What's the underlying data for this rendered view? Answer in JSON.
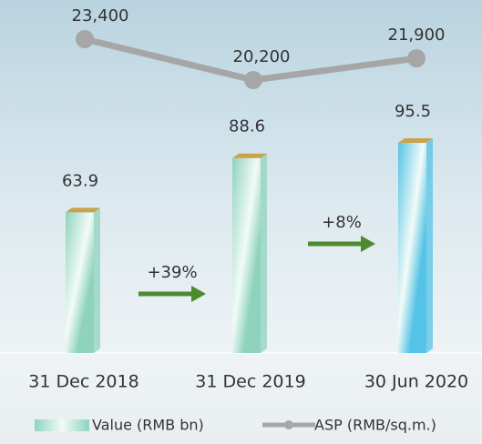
{
  "chart_data": {
    "type": "bar",
    "categories": [
      "31 Dec 2018",
      "31 Dec 2019",
      "30 Jun 2020"
    ],
    "series": [
      {
        "name": "Value (RMB bn)",
        "type": "bar",
        "colors": [
          "#8fd3bd",
          "#8fd3bd",
          "#55c3e6"
        ],
        "cap_color": "#c9a24a",
        "values": [
          63.9,
          88.6,
          95.5
        ]
      },
      {
        "name": "ASP (RMB/sq.m.)",
        "type": "line",
        "axis": "y2",
        "color": "#a6a6a6",
        "values": [
          23400,
          20200,
          21900
        ],
        "value_labels": [
          "23,400",
          "20,200",
          "21,900"
        ]
      }
    ],
    "annotations": [
      "+39%",
      "+8%"
    ],
    "annotation_color": "#4e8a2e"
  }
}
